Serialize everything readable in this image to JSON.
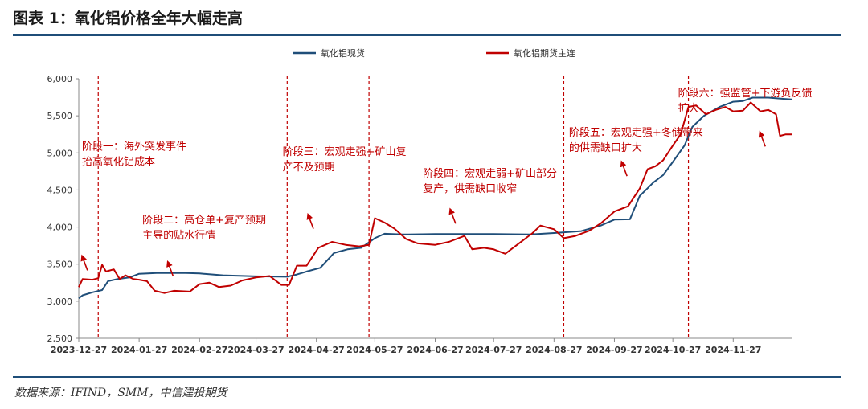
{
  "header": {
    "title": "图表 1：氧化铝价格全年大幅走高"
  },
  "footer": {
    "source": "数据来源：IFIND，SMM，中信建投期货"
  },
  "chart_data": {
    "type": "line",
    "ylim": [
      2500,
      6000
    ],
    "yticks": [
      2500,
      3000,
      3500,
      4000,
      4500,
      5000,
      5500,
      6000
    ],
    "ytick_labels": [
      "2,500",
      "3,000",
      "3,500",
      "4,000",
      "4,500",
      "5,000",
      "5,500",
      "6,000"
    ],
    "xlim": [
      "2023-12-27",
      "2024-12-27"
    ],
    "xticks": [
      "2023-12-27",
      "2024-01-27",
      "2024-02-27",
      "2024-03-27",
      "2024-04-27",
      "2024-05-27",
      "2024-06-27",
      "2024-07-27",
      "2024-08-27",
      "2024-09-27",
      "2024-10-27",
      "2024-11-27"
    ],
    "legend_position": "top-center",
    "series": [
      {
        "name": "氧化铝现货",
        "color": "#1f4e79",
        "points": [
          [
            "2023-12-27",
            3040
          ],
          [
            "2023-12-29",
            3080
          ],
          [
            "2024-01-03",
            3120
          ],
          [
            "2024-01-08",
            3150
          ],
          [
            "2024-01-11",
            3270
          ],
          [
            "2024-01-16",
            3300
          ],
          [
            "2024-01-22",
            3320
          ],
          [
            "2024-01-27",
            3370
          ],
          [
            "2024-02-05",
            3380
          ],
          [
            "2024-02-20",
            3380
          ],
          [
            "2024-02-27",
            3375
          ],
          [
            "2024-03-10",
            3350
          ],
          [
            "2024-03-27",
            3335
          ],
          [
            "2024-04-12",
            3330
          ],
          [
            "2024-04-17",
            3360
          ],
          [
            "2024-04-22",
            3400
          ],
          [
            "2024-04-29",
            3450
          ],
          [
            "2024-05-06",
            3650
          ],
          [
            "2024-05-13",
            3700
          ],
          [
            "2024-05-20",
            3720
          ],
          [
            "2024-05-27",
            3850
          ],
          [
            "2024-06-01",
            3910
          ],
          [
            "2024-06-10",
            3900
          ],
          [
            "2024-06-27",
            3905
          ],
          [
            "2024-07-27",
            3905
          ],
          [
            "2024-08-15",
            3900
          ],
          [
            "2024-08-27",
            3920
          ],
          [
            "2024-09-10",
            3945
          ],
          [
            "2024-09-20",
            4020
          ],
          [
            "2024-09-27",
            4100
          ],
          [
            "2024-10-05",
            4105
          ],
          [
            "2024-10-10",
            4420
          ],
          [
            "2024-10-17",
            4600
          ],
          [
            "2024-10-22",
            4700
          ],
          [
            "2024-10-27",
            4880
          ],
          [
            "2024-11-02",
            5100
          ],
          [
            "2024-11-06",
            5350
          ],
          [
            "2024-11-12",
            5500
          ],
          [
            "2024-11-20",
            5620
          ],
          [
            "2024-11-27",
            5690
          ],
          [
            "2024-12-02",
            5700
          ],
          [
            "2024-12-07",
            5745
          ],
          [
            "2024-12-15",
            5745
          ],
          [
            "2024-12-22",
            5730
          ],
          [
            "2024-12-27",
            5720
          ]
        ]
      },
      {
        "name": "氧化铝期货主连",
        "color": "#c00000",
        "points": [
          [
            "2023-12-27",
            3190
          ],
          [
            "2023-12-29",
            3300
          ],
          [
            "2024-01-03",
            3290
          ],
          [
            "2024-01-06",
            3310
          ],
          [
            "2024-01-08",
            3490
          ],
          [
            "2024-01-10",
            3400
          ],
          [
            "2024-01-14",
            3430
          ],
          [
            "2024-01-17",
            3300
          ],
          [
            "2024-01-20",
            3350
          ],
          [
            "2024-01-24",
            3300
          ],
          [
            "2024-01-27",
            3290
          ],
          [
            "2024-01-31",
            3270
          ],
          [
            "2024-02-04",
            3140
          ],
          [
            "2024-02-09",
            3110
          ],
          [
            "2024-02-14",
            3140
          ],
          [
            "2024-02-22",
            3130
          ],
          [
            "2024-02-27",
            3230
          ],
          [
            "2024-03-03",
            3250
          ],
          [
            "2024-03-08",
            3190
          ],
          [
            "2024-03-14",
            3210
          ],
          [
            "2024-03-20",
            3280
          ],
          [
            "2024-03-27",
            3320
          ],
          [
            "2024-04-03",
            3340
          ],
          [
            "2024-04-09",
            3220
          ],
          [
            "2024-04-13",
            3220
          ],
          [
            "2024-04-17",
            3480
          ],
          [
            "2024-04-22",
            3480
          ],
          [
            "2024-04-28",
            3720
          ],
          [
            "2024-05-05",
            3800
          ],
          [
            "2024-05-12",
            3760
          ],
          [
            "2024-05-19",
            3740
          ],
          [
            "2024-05-24",
            3760
          ],
          [
            "2024-05-27",
            4120
          ],
          [
            "2024-06-01",
            4060
          ],
          [
            "2024-06-06",
            3980
          ],
          [
            "2024-06-12",
            3840
          ],
          [
            "2024-06-18",
            3780
          ],
          [
            "2024-06-27",
            3760
          ],
          [
            "2024-07-04",
            3800
          ],
          [
            "2024-07-12",
            3880
          ],
          [
            "2024-07-16",
            3700
          ],
          [
            "2024-07-22",
            3720
          ],
          [
            "2024-07-27",
            3700
          ],
          [
            "2024-08-02",
            3640
          ],
          [
            "2024-08-09",
            3780
          ],
          [
            "2024-08-16",
            3920
          ],
          [
            "2024-08-20",
            4020
          ],
          [
            "2024-08-27",
            3970
          ],
          [
            "2024-09-01",
            3850
          ],
          [
            "2024-09-07",
            3880
          ],
          [
            "2024-09-14",
            3950
          ],
          [
            "2024-09-20",
            4050
          ],
          [
            "2024-09-27",
            4210
          ],
          [
            "2024-10-04",
            4280
          ],
          [
            "2024-10-10",
            4520
          ],
          [
            "2024-10-14",
            4780
          ],
          [
            "2024-10-18",
            4820
          ],
          [
            "2024-10-22",
            4900
          ],
          [
            "2024-10-27",
            5100
          ],
          [
            "2024-10-31",
            5250
          ],
          [
            "2024-11-04",
            5620
          ],
          [
            "2024-11-08",
            5640
          ],
          [
            "2024-11-13",
            5520
          ],
          [
            "2024-11-18",
            5580
          ],
          [
            "2024-11-23",
            5620
          ],
          [
            "2024-11-27",
            5560
          ],
          [
            "2024-12-02",
            5570
          ],
          [
            "2024-12-06",
            5680
          ],
          [
            "2024-12-11",
            5560
          ],
          [
            "2024-12-15",
            5580
          ],
          [
            "2024-12-19",
            5520
          ],
          [
            "2024-12-21",
            5230
          ],
          [
            "2024-12-24",
            5250
          ],
          [
            "2024-12-27",
            5250
          ]
        ]
      }
    ],
    "phase_lines": [
      "2024-01-06",
      "2024-04-12",
      "2024-05-24",
      "2024-08-32",
      "2024-11-04"
    ],
    "annotations": [
      {
        "lines": [
          "阶段一：海外突发事件",
          "抬高氧化铝成本"
        ],
        "anchor": [
          "2023-12-27",
          5040
        ]
      },
      {
        "lines": [
          "阶段二：高仓单+复产预期",
          "主导的贴水行情"
        ],
        "anchor": [
          "2024-01-27",
          4050
        ]
      },
      {
        "lines": [
          "阶段三：宏观走强+矿山复",
          "产不及预期"
        ],
        "anchor": [
          "2024-04-08",
          4970
        ]
      },
      {
        "lines": [
          "阶段四：宏观走弱+矿山部分",
          "复产，供需缺口收窄"
        ],
        "anchor": [
          "2024-06-19",
          4680
        ]
      },
      {
        "lines": [
          "阶段五：宏观走强+冬储带来",
          "的供需缺口扩大"
        ],
        "anchor": [
          "2024-09-02",
          5230
        ]
      },
      {
        "lines": [
          "阶段六：强监管+下游负反馈",
          "扩大"
        ],
        "anchor": [
          "2024-10-28",
          5760
        ]
      }
    ],
    "markers": [
      {
        "at": [
          "2023-12-29",
          3590
        ]
      },
      {
        "at": [
          "2024-02-11",
          3510
        ]
      },
      {
        "at": [
          "2024-04-23",
          4150
        ]
      },
      {
        "at": [
          "2024-07-05",
          4220
        ]
      },
      {
        "at": [
          "2024-10-01",
          4860
        ]
      },
      {
        "at": [
          "2024-12-11",
          5260
        ]
      }
    ]
  }
}
